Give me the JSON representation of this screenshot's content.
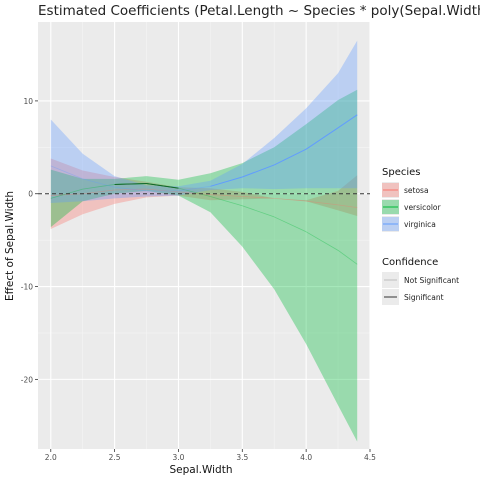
{
  "chart_data": {
    "type": "line",
    "title": "Estimated Coefficients (Petal.Length ~ Species * poly(Sepal.Width,",
    "xlabel": "Sepal.Width",
    "ylabel": "Effect of Sepal.Width",
    "xlim": [
      1.9,
      4.5
    ],
    "ylim": [
      -27.5,
      18.5
    ],
    "x_ticks": [
      2.0,
      2.5,
      3.0,
      3.5,
      4.0,
      4.5
    ],
    "x_tick_labels": [
      "2.0",
      "2.5",
      "3.0",
      "3.5",
      "4.0",
      "4.5"
    ],
    "y_ticks": [
      10,
      0,
      -10,
      -20
    ],
    "y_tick_labels": [
      "10",
      "0",
      "-10",
      "-20"
    ],
    "grid": true,
    "reference_line": {
      "y": 0,
      "style": "dashed"
    },
    "legend_placement": "right",
    "legend_species_title": "Species",
    "legend_confidence_title": "Confidence",
    "confidence_levels": [
      "Not Significant",
      "Significant"
    ],
    "series": [
      {
        "name": "setosa",
        "color": "#F8766D",
        "x": [
          2.0,
          2.25,
          2.5,
          2.75,
          3.0,
          3.25,
          3.5,
          3.75,
          4.0,
          4.25,
          4.4
        ],
        "y": [
          -0.2,
          0.0,
          0.4,
          0.5,
          0.2,
          -0.1,
          -0.3,
          -0.5,
          -0.8,
          -1.2,
          -1.5
        ],
        "lower": [
          -3.8,
          -2.2,
          -1.1,
          -0.4,
          -0.2,
          -0.7,
          -0.6,
          -0.5,
          -0.8,
          -1.8,
          -2.4
        ],
        "upper": [
          3.8,
          2.5,
          1.8,
          1.3,
          0.7,
          0.6,
          0.2,
          -0.5,
          -0.7,
          0.3,
          2.0
        ],
        "significant": [
          false,
          false,
          false,
          false,
          false,
          false,
          false,
          false,
          false,
          false,
          false
        ]
      },
      {
        "name": "versicolor",
        "color": "#00BA38",
        "x": [
          2.0,
          2.25,
          2.5,
          2.75,
          3.0,
          3.25,
          3.5,
          3.75,
          4.0,
          4.25,
          4.4
        ],
        "y": [
          -0.5,
          0.5,
          1.0,
          1.1,
          0.6,
          -0.3,
          -1.3,
          -2.5,
          -4.1,
          -6.1,
          -7.6
        ],
        "lower": [
          -3.6,
          -0.8,
          0.0,
          0.3,
          -0.2,
          -2.0,
          -5.7,
          -10.3,
          -16.2,
          -22.8,
          -26.7
        ],
        "upper": [
          2.6,
          1.6,
          1.6,
          1.9,
          1.5,
          2.2,
          3.3,
          5.0,
          7.5,
          10.1,
          11.2
        ],
        "significant": [
          false,
          false,
          true,
          true,
          true,
          false,
          false,
          false,
          false,
          false,
          false
        ]
      },
      {
        "name": "virginica",
        "color": "#619CFF",
        "x": [
          2.0,
          2.25,
          2.5,
          2.75,
          3.0,
          3.25,
          3.5,
          3.75,
          4.0,
          4.25,
          4.4
        ],
        "y": [
          3.0,
          1.6,
          0.7,
          0.3,
          0.3,
          0.8,
          1.8,
          3.1,
          4.8,
          7.1,
          8.5
        ],
        "lower": [
          -1.0,
          -0.8,
          -0.5,
          -0.3,
          -0.2,
          0.4,
          0.6,
          0.5,
          0.6,
          0.6,
          0.6
        ],
        "upper": [
          8.0,
          4.3,
          1.9,
          0.9,
          0.8,
          1.4,
          3.2,
          6.0,
          9.2,
          13.0,
          16.5
        ],
        "significant": [
          false,
          false,
          false,
          false,
          false,
          true,
          true,
          true,
          true,
          true,
          true
        ]
      }
    ]
  }
}
